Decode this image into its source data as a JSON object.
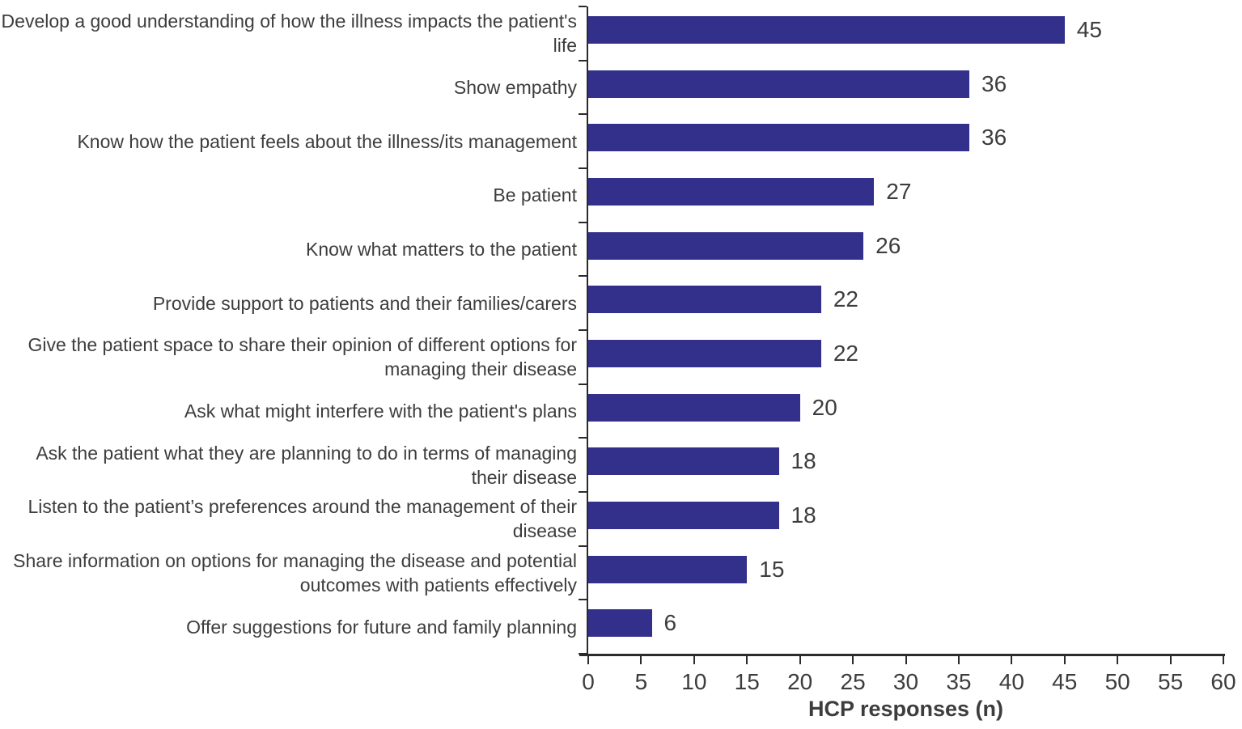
{
  "figure": {
    "background": "#ffffff"
  },
  "chart_data": {
    "type": "bar",
    "orientation": "horizontal",
    "title": "",
    "xlabel": "HCP responses (n)",
    "ylabel": "",
    "xlim": [
      0,
      60
    ],
    "xticks": [
      0,
      5,
      10,
      15,
      20,
      25,
      30,
      35,
      40,
      45,
      50,
      55,
      60
    ],
    "grid": false,
    "legend": false,
    "value_labels_shown": true,
    "bar_color": "#32308a",
    "axis_color": "#2b2b2b",
    "text_color": "#3d3d3d",
    "categories": [
      "Develop a good understanding of how the illness impacts the patient's life",
      "Show empathy",
      "Know how the patient feels about the illness/its management",
      "Be patient",
      "Know what matters to the patient",
      "Provide support to patients and their families/carers",
      "Give the patient space to share their opinion of different options for managing their disease",
      "Ask what might interfere with the patient's plans",
      "Ask the patient what they are planning to do in terms of managing their disease",
      "Listen to the patient’s preferences around the management of their disease",
      "Share information on options for managing the disease and potential outcomes with patients effectively",
      "Offer suggestions for future and family planning"
    ],
    "values": [
      45,
      36,
      36,
      27,
      26,
      22,
      22,
      20,
      18,
      18,
      15,
      6
    ]
  }
}
